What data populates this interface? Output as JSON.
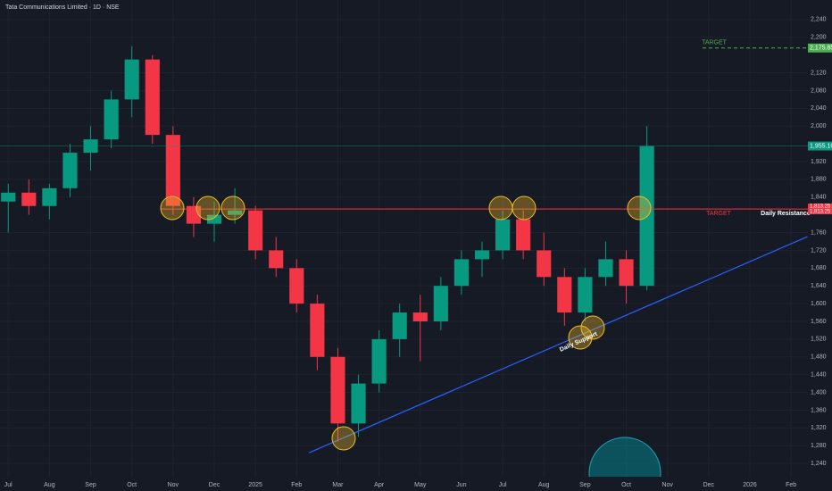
{
  "chart_data": {
    "type": "candlestick",
    "title": "Tata Communications Limited · 1D · NSE",
    "x": [
      0,
      0.5,
      1,
      1.5,
      2,
      2.5,
      3,
      3.5,
      4,
      4.5,
      5,
      5.5,
      6,
      6.5,
      7,
      7.5,
      8,
      8.5,
      9,
      9.5,
      10,
      10.5,
      11,
      11.5,
      12,
      12.5,
      13,
      13.5,
      14,
      14.5,
      15,
      15.5
    ],
    "open": [
      1830,
      1850,
      1820,
      1860,
      1940,
      1970,
      2060,
      2150,
      1980,
      1820,
      1780,
      1800,
      1810,
      1720,
      1680,
      1600,
      1480,
      1330,
      1420,
      1520,
      1580,
      1560,
      1640,
      1700,
      1720,
      1790,
      1720,
      1660,
      1580,
      1660,
      1700,
      1640
    ],
    "high": [
      1870,
      1880,
      1870,
      1960,
      2000,
      2080,
      2180,
      2160,
      2000,
      1840,
      1830,
      1860,
      1820,
      1750,
      1700,
      1620,
      1500,
      1440,
      1540,
      1600,
      1620,
      1660,
      1720,
      1740,
      1810,
      1810,
      1760,
      1680,
      1680,
      1740,
      1720,
      2000
    ],
    "low": [
      1760,
      1800,
      1790,
      1840,
      1900,
      1950,
      2020,
      1960,
      1800,
      1750,
      1740,
      1780,
      1700,
      1660,
      1580,
      1450,
      1290,
      1300,
      1400,
      1480,
      1470,
      1540,
      1620,
      1660,
      1700,
      1700,
      1640,
      1550,
      1560,
      1640,
      1600,
      1630
    ],
    "close": [
      1850,
      1820,
      1860,
      1940,
      1970,
      2060,
      2150,
      1980,
      1820,
      1780,
      1800,
      1810,
      1720,
      1680,
      1600,
      1480,
      1330,
      1420,
      1520,
      1580,
      1560,
      1640,
      1700,
      1720,
      1790,
      1720,
      1660,
      1580,
      1660,
      1700,
      1640,
      1955
    ],
    "up_color": "#089981",
    "down_color": "#f23645",
    "xlim": [
      -0.2,
      19.3
    ],
    "xticks": [
      {
        "value": 0,
        "label": "Jul"
      },
      {
        "value": 1,
        "label": "Aug"
      },
      {
        "value": 2,
        "label": "Sep"
      },
      {
        "value": 3,
        "label": "Oct"
      },
      {
        "value": 4,
        "label": "Nov"
      },
      {
        "value": 5,
        "label": "Dec"
      },
      {
        "value": 6,
        "label": "2025"
      },
      {
        "value": 7,
        "label": "Feb"
      },
      {
        "value": 8,
        "label": "Mar"
      },
      {
        "value": 9,
        "label": "Apr"
      },
      {
        "value": 10,
        "label": "May"
      },
      {
        "value": 11,
        "label": "Jun"
      },
      {
        "value": 12,
        "label": "Jul"
      },
      {
        "value": 13,
        "label": "Aug"
      },
      {
        "value": 14,
        "label": "Sep"
      },
      {
        "value": 15,
        "label": "Oct"
      },
      {
        "value": 16,
        "label": "Nov"
      },
      {
        "value": 17,
        "label": "Dec"
      },
      {
        "value": 18,
        "label": "2026"
      },
      {
        "value": 19,
        "label": "Feb"
      }
    ],
    "ylim": [
      1198,
      2284
    ],
    "yticks": [
      {
        "value": 1240,
        "label": "1,240"
      },
      {
        "value": 1280,
        "label": "1,280"
      },
      {
        "value": 1320,
        "label": "1,320"
      },
      {
        "value": 1360,
        "label": "1,360"
      },
      {
        "value": 1400,
        "label": "1,400"
      },
      {
        "value": 1440,
        "label": "1,440"
      },
      {
        "value": 1480,
        "label": "1,480"
      },
      {
        "value": 1520,
        "label": "1,520"
      },
      {
        "value": 1560,
        "label": "1,560"
      },
      {
        "value": 1600,
        "label": "1,600"
      },
      {
        "value": 1640,
        "label": "1,640"
      },
      {
        "value": 1680,
        "label": "1,680"
      },
      {
        "value": 1720,
        "label": "1,720"
      },
      {
        "value": 1760,
        "label": "1,760"
      },
      {
        "value": 1840,
        "label": "1,840"
      },
      {
        "value": 1880,
        "label": "1,880"
      },
      {
        "value": 1920,
        "label": "1,920"
      },
      {
        "value": 2000,
        "label": "2,000"
      },
      {
        "value": 2040,
        "label": "2,040"
      },
      {
        "value": 2080,
        "label": "2,080"
      },
      {
        "value": 2120,
        "label": "2,120"
      },
      {
        "value": 2200,
        "label": "2,200"
      },
      {
        "value": 2240,
        "label": "2,240"
      }
    ],
    "grid": true,
    "resistance": {
      "value": 1813.25,
      "price_label": "1,813.25",
      "target_text": "TARGET",
      "label": "Daily Resistance",
      "color": "#f23645"
    },
    "target": {
      "value": 2175.85,
      "price_label": "2,175.85",
      "text": "TARGET",
      "color": "#4caf50"
    },
    "last_price": {
      "value": 1955.1,
      "label": "1,955.10",
      "color": "#089981"
    },
    "support": {
      "x": [
        7.3,
        19.4
      ],
      "y": [
        1264,
        1751
      ],
      "label": "Daily Support",
      "color": "#2962ff"
    }
  }
}
